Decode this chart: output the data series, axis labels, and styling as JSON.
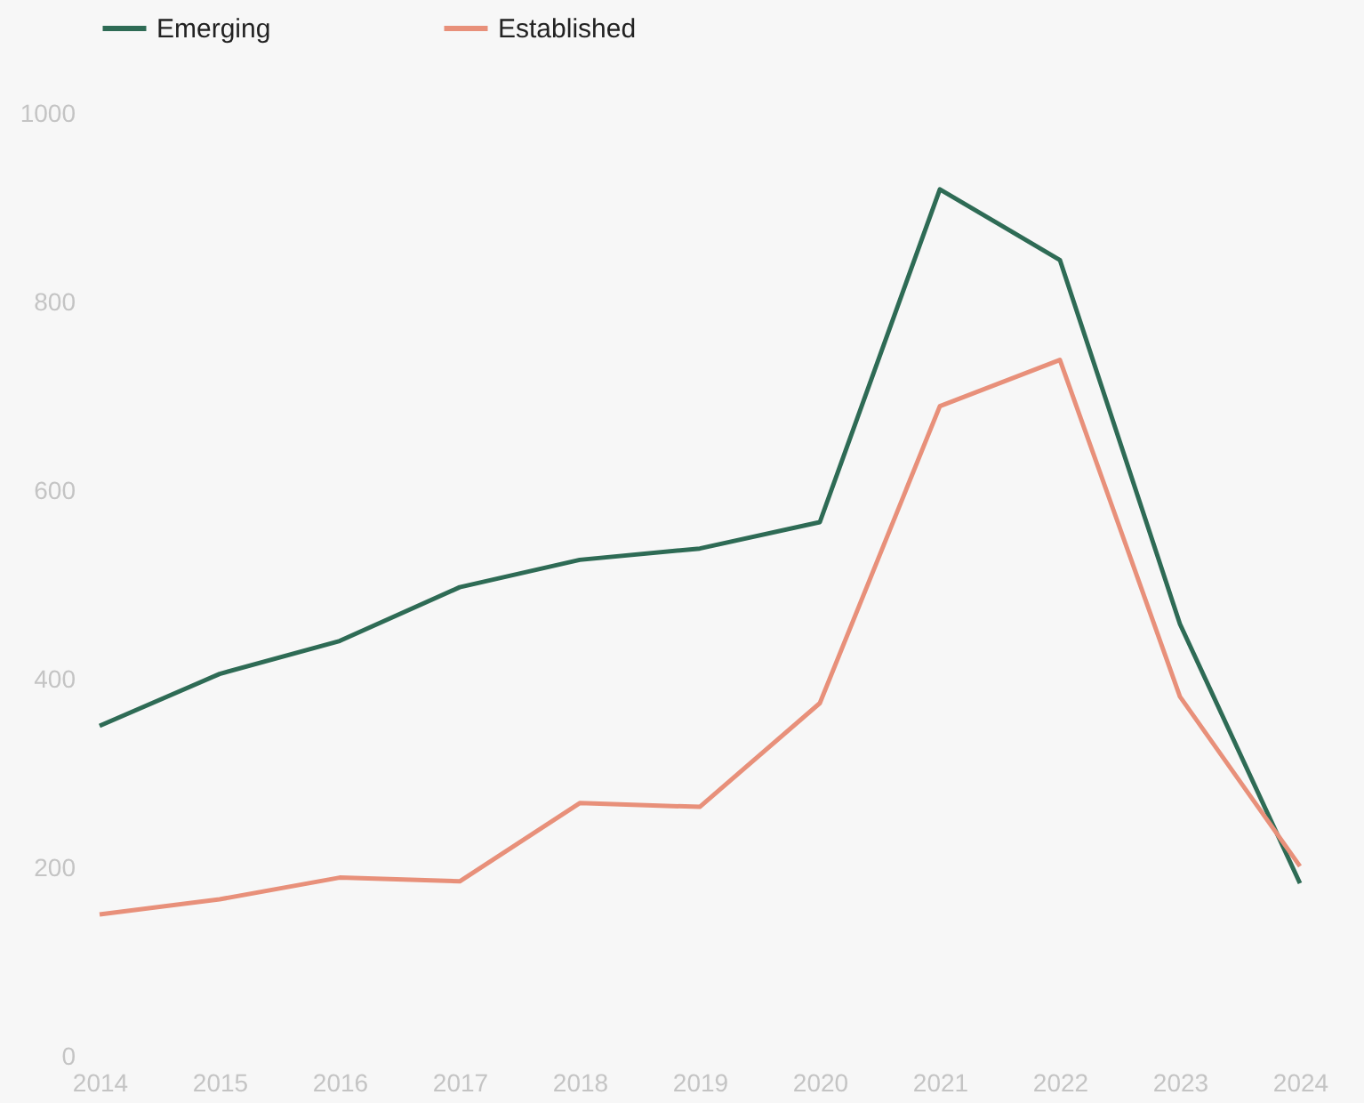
{
  "chart_data": {
    "type": "line",
    "x": [
      2014,
      2015,
      2016,
      2017,
      2018,
      2019,
      2020,
      2021,
      2022,
      2023,
      2024
    ],
    "series": [
      {
        "name": "Emerging",
        "color": "#2e6b55",
        "values": [
          351,
          406,
          441,
          498,
          527,
          539,
          567,
          920,
          845,
          459,
          184
        ]
      },
      {
        "name": "Established",
        "color": "#e8907a",
        "values": [
          151,
          167,
          190,
          186,
          269,
          265,
          375,
          690,
          739,
          382,
          202
        ]
      }
    ],
    "xlim": [
      2014,
      2024
    ],
    "xticks": [
      2014,
      2015,
      2016,
      2017,
      2018,
      2019,
      2020,
      2021,
      2022,
      2023,
      2024
    ],
    "ylim": [
      0,
      1000
    ],
    "yticks": [
      0,
      200,
      400,
      600,
      800,
      1000
    ],
    "grid": false,
    "legend": "top left",
    "marker": "none",
    "line_style": "solid"
  }
}
